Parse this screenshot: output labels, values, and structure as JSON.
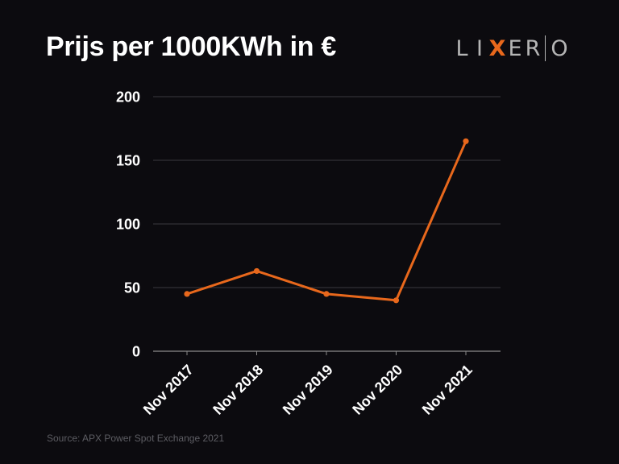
{
  "header": {
    "title": "Prijs per 1000KWh in €"
  },
  "logo": {
    "text": "LIXERO",
    "letters_before": [
      "L",
      "I"
    ],
    "accent_letter": "X",
    "letters_after": [
      "E",
      "R"
    ],
    "last_letter": "O"
  },
  "footer": {
    "source": "Source: APX Power Spot Exchange 2021"
  },
  "colors": {
    "background": "#0c0b0f",
    "line": "#e8681c",
    "grid": "#3a3a3f",
    "axis": "#8a8a8a",
    "text": "#ffffff",
    "logo_gray": "#b5b5b5",
    "logo_accent": "#e8681c",
    "source_text": "#5d5d63"
  },
  "chart_data": {
    "type": "line",
    "title": "Prijs per 1000KWh in €",
    "xlabel": "",
    "ylabel": "",
    "categories": [
      "Nov 2017",
      "Nov 2018",
      "Nov 2019",
      "Nov 2020",
      "Nov 2021"
    ],
    "series": [
      {
        "name": "Prijs",
        "values": [
          45,
          63,
          45,
          40,
          165
        ]
      }
    ],
    "ylim": [
      0,
      200
    ],
    "yticks": [
      0,
      50,
      100,
      150,
      200
    ],
    "grid": true,
    "legend": "none"
  }
}
